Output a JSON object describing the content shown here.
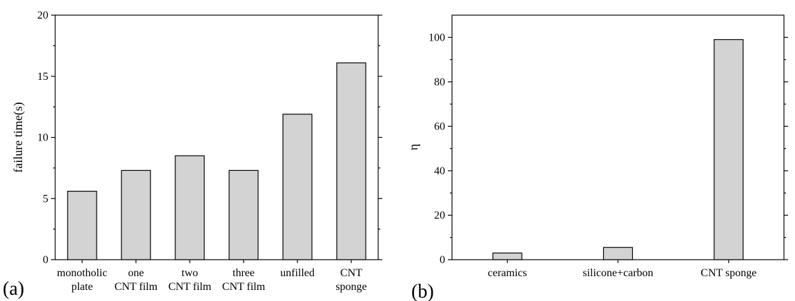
{
  "panels": [
    {
      "label": "(a)"
    },
    {
      "label": "(b)"
    }
  ],
  "bar_color": "#d3d3d3",
  "chart_data": [
    {
      "type": "bar",
      "title": "",
      "xlabel": "",
      "ylabel": "failure time(s)",
      "ylim": [
        0,
        20
      ],
      "yticks": [
        0,
        5,
        10,
        15,
        20
      ],
      "categories": [
        [
          "monotholic",
          "plate"
        ],
        [
          "one",
          "CNT film"
        ],
        [
          "two",
          "CNT film"
        ],
        [
          "three",
          "CNT film"
        ],
        [
          "unfilled"
        ],
        [
          "CNT",
          "sponge"
        ]
      ],
      "values": [
        5.6,
        7.3,
        8.5,
        7.3,
        11.9,
        16.1
      ],
      "grid": false,
      "legend": "none"
    },
    {
      "type": "bar",
      "title": "",
      "xlabel": "",
      "ylabel": "η",
      "ylim": [
        0,
        110
      ],
      "yticks": [
        0,
        20,
        40,
        60,
        80,
        100
      ],
      "categories": [
        [
          "ceramics"
        ],
        [
          "silicone+carbon"
        ],
        [
          "CNT sponge"
        ]
      ],
      "values": [
        3,
        5.5,
        99
      ],
      "grid": false,
      "legend": "none"
    }
  ]
}
